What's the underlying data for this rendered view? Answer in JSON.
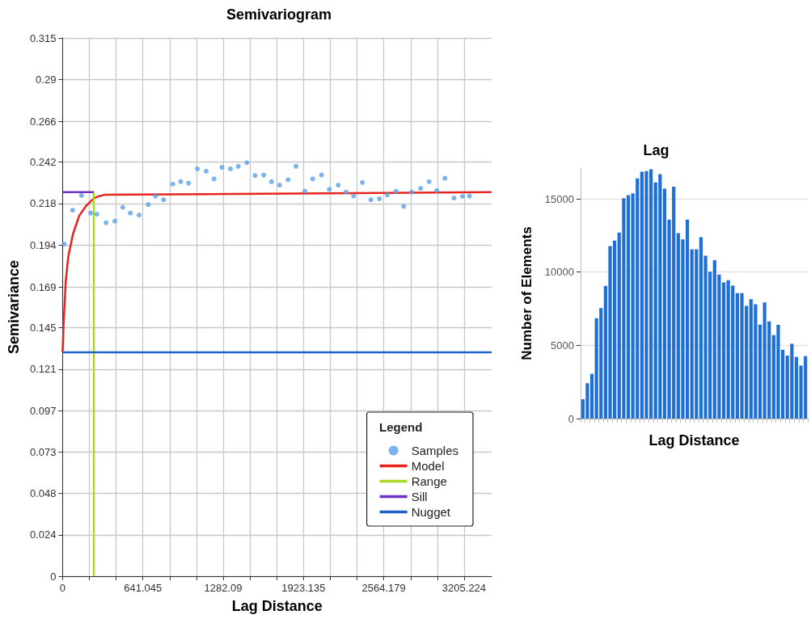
{
  "chart_data": [
    {
      "type": "scatter",
      "title": "Semivariogram",
      "xlabel": "Lag Distance",
      "ylabel": "Semivariance",
      "legend_title": "Legend",
      "legend": "bottom right",
      "grid": true,
      "xlim": [
        0,
        3425
      ],
      "ylim": [
        0,
        0.315
      ],
      "xticks": [
        0,
        {
          "value": 213.682,
          "label": null
        },
        {
          "value": 427.363,
          "label": null
        },
        641.045,
        {
          "value": 854.727,
          "label": null
        },
        {
          "value": 1068.408,
          "label": null
        },
        1282.09,
        {
          "value": 1495.772,
          "label": null
        },
        {
          "value": 1709.453,
          "label": null
        },
        1923.135,
        {
          "value": 2136.817,
          "label": null
        },
        {
          "value": 2350.498,
          "label": null
        },
        2564.179,
        {
          "value": 2777.861,
          "label": null
        },
        {
          "value": 2991.543,
          "label": null
        },
        3205.224
      ],
      "yticks": [
        0,
        {
          "value": 0.02423,
          "label": "0.024"
        },
        {
          "value": 0.04846,
          "label": "0.048"
        },
        {
          "value": 0.07269,
          "label": "0.073"
        },
        {
          "value": 0.09692,
          "label": "0.097"
        },
        {
          "value": 0.12115,
          "label": "0.121"
        },
        {
          "value": 0.14538,
          "label": "0.145"
        },
        0.169,
        {
          "value": 0.19385,
          "label": "0.194"
        },
        {
          "value": 0.21808,
          "label": "0.218"
        },
        {
          "value": 0.24231,
          "label": "0.242"
        },
        0.266,
        {
          "value": 0.29077,
          "label": "0.29"
        },
        0.315
      ],
      "series": [
        {
          "name": "Samples",
          "type": "scatter",
          "color": "#5aa0e8",
          "x": [
            13,
            80,
            151,
            224,
            274,
            347,
            417,
            480,
            541,
            611,
            684,
            742,
            807,
            880,
            943,
            1006,
            1076,
            1146,
            1209,
            1272,
            1340,
            1403,
            1471,
            1536,
            1606,
            1667,
            1732,
            1800,
            1863,
            1933,
            1996,
            2067,
            2129,
            2200,
            2263,
            2323,
            2393,
            2461,
            2529,
            2592,
            2662,
            2723,
            2788,
            2858,
            2926,
            2987,
            3052,
            3125,
            3193,
            3248
          ],
          "values": [
            0.1944,
            0.2142,
            0.2228,
            0.2125,
            0.2119,
            0.2069,
            0.2078,
            0.2159,
            0.2125,
            0.2114,
            0.2175,
            0.2225,
            0.2203,
            0.2295,
            0.2309,
            0.23,
            0.2384,
            0.237,
            0.2325,
            0.2393,
            0.2384,
            0.2399,
            0.242,
            0.2345,
            0.2348,
            0.2309,
            0.2289,
            0.232,
            0.2399,
            0.2253,
            0.2325,
            0.2348,
            0.2264,
            0.2289,
            0.2248,
            0.2225,
            0.2304,
            0.2203,
            0.2209,
            0.2232,
            0.2253,
            0.2164,
            0.2248,
            0.227,
            0.2309,
            0.2257,
            0.2329,
            0.2213,
            0.2223,
            0.2225
          ]
        },
        {
          "name": "Model",
          "type": "line",
          "color": "#e8231e",
          "x": [
            0,
            8,
            25,
            45,
            83,
            133,
            184,
            246,
            284,
            334,
            3425
          ],
          "values": [
            0.131,
            0.1474,
            0.1725,
            0.1869,
            0.2003,
            0.211,
            0.2164,
            0.2209,
            0.2223,
            0.2232,
            0.2248
          ]
        },
        {
          "name": "Range",
          "type": "line",
          "color": "#a8d828",
          "x": [
            249,
            249
          ],
          "values": [
            0,
            0.2248
          ]
        },
        {
          "name": "Sill",
          "type": "line",
          "color": "#7030c8",
          "x": [
            0,
            249
          ],
          "values": [
            0.2248,
            0.2248
          ]
        },
        {
          "name": "Nugget",
          "type": "line",
          "color": "#1f5fc8",
          "x": [
            0,
            3425
          ],
          "values": [
            0.131,
            0.131
          ]
        }
      ]
    },
    {
      "type": "bar",
      "title": "Lag",
      "xlabel": "Lag Distance",
      "ylabel": "Number of Elements",
      "grid": "y",
      "color": "#1f6fd8",
      "categories": [
        null,
        null,
        null,
        null,
        null,
        null,
        null,
        null,
        null,
        null,
        null,
        null,
        null,
        null,
        null,
        null,
        null,
        null,
        null,
        null,
        null,
        null,
        null,
        null,
        null,
        null,
        null,
        null,
        null,
        null,
        null,
        null,
        null,
        null,
        null,
        null,
        null,
        null,
        null,
        null,
        null,
        null,
        null,
        null,
        null,
        null,
        null,
        null,
        null,
        null
      ],
      "ylim": [
        0,
        17100
      ],
      "yticks": [
        0,
        5000,
        10000,
        15000
      ],
      "values": [
        1320,
        2415,
        3057,
        6850,
        7548,
        9058,
        11775,
        12152,
        12700,
        15040,
        15250,
        15380,
        16400,
        16850,
        16890,
        17020,
        16115,
        16680,
        15700,
        13590,
        15830,
        12660,
        12230,
        13590,
        11550,
        11550,
        12380,
        11115,
        10020,
        10810,
        9830,
        9300,
        9450,
        9075,
        8570,
        8570,
        7700,
        8150,
        7810,
        6415,
        7925,
        6640,
        5700,
        6400,
        4700,
        4300,
        5110,
        4210,
        3620,
        4265
      ]
    }
  ]
}
